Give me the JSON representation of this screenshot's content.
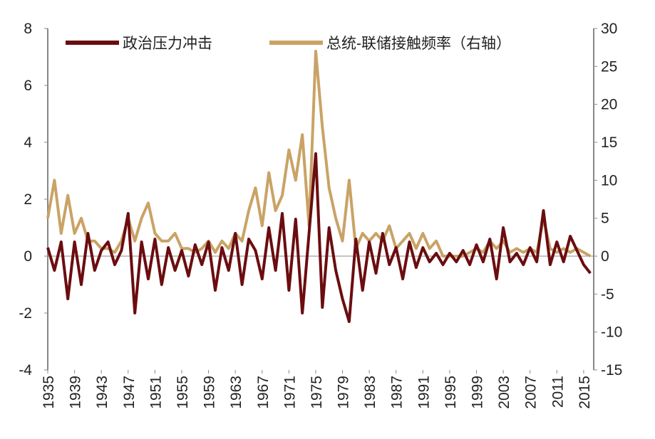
{
  "chart_data": {
    "type": "line",
    "x": [
      1935,
      1936,
      1937,
      1938,
      1939,
      1940,
      1941,
      1942,
      1943,
      1944,
      1945,
      1946,
      1947,
      1948,
      1949,
      1950,
      1951,
      1952,
      1953,
      1954,
      1955,
      1956,
      1957,
      1958,
      1959,
      1960,
      1961,
      1962,
      1963,
      1964,
      1965,
      1966,
      1967,
      1968,
      1969,
      1970,
      1971,
      1972,
      1973,
      1974,
      1975,
      1976,
      1977,
      1978,
      1979,
      1980,
      1981,
      1982,
      1983,
      1984,
      1985,
      1986,
      1987,
      1988,
      1989,
      1990,
      1991,
      1992,
      1993,
      1994,
      1995,
      1996,
      1997,
      1998,
      1999,
      2000,
      2001,
      2002,
      2003,
      2004,
      2005,
      2006,
      2007,
      2008,
      2009,
      2010,
      2011,
      2012,
      2013,
      2014,
      2015,
      2016
    ],
    "series": [
      {
        "name": "政治压力冲击",
        "color": "#6b0d10",
        "values": [
          0.3,
          -0.5,
          0.5,
          -1.5,
          0.5,
          -1.0,
          0.8,
          -0.5,
          0.2,
          0.5,
          -0.3,
          0.2,
          1.5,
          -2.0,
          0.5,
          -0.8,
          0.6,
          -1.0,
          0.3,
          -0.5,
          0.2,
          -0.7,
          0.4,
          -0.3,
          0.5,
          -1.2,
          0.3,
          -0.5,
          0.8,
          -1.0,
          0.6,
          0.2,
          -0.8,
          1.0,
          -0.5,
          1.5,
          -1.2,
          1.3,
          -2.0,
          0.8,
          3.6,
          -1.8,
          1.0,
          -0.5,
          -1.5,
          -2.3,
          0.6,
          -1.2,
          0.5,
          -0.6,
          0.8,
          -0.3,
          0.3,
          -0.8,
          0.5,
          -0.4,
          0.3,
          -0.2,
          0.1,
          -0.3,
          0.1,
          -0.2,
          0.2,
          -0.3,
          0.4,
          -0.2,
          0.6,
          -0.8,
          1.0,
          -0.2,
          0.1,
          -0.3,
          0.3,
          -0.2,
          1.6,
          -0.3,
          0.5,
          -0.2,
          0.7,
          0.2,
          -0.3,
          -0.6
        ]
      },
      {
        "name": "总统-联储接触频率（右轴）",
        "color": "#c9a366",
        "axis": "y2",
        "values": [
          5,
          10,
          3,
          8,
          3,
          5,
          2,
          2,
          1,
          1,
          0.5,
          2,
          5,
          2,
          5,
          7,
          3,
          2,
          2,
          3,
          1,
          1,
          0.5,
          1,
          2,
          0.5,
          2,
          1,
          3,
          2,
          6,
          9,
          4,
          11,
          6,
          8,
          14,
          10,
          16,
          4,
          27,
          17,
          9,
          5,
          2,
          10,
          1,
          3,
          2,
          3,
          2,
          4,
          1,
          2,
          3,
          1,
          3,
          1,
          2,
          0,
          0,
          0,
          0,
          0.5,
          1,
          0.5,
          2,
          1,
          2,
          0.5,
          1,
          0.5,
          1,
          0.5,
          5,
          1,
          0.5,
          1,
          0.5,
          1,
          0.5,
          0
        ]
      }
    ],
    "xlim": [
      1935,
      2016.5
    ],
    "xticks": [
      1935,
      1939,
      1943,
      1947,
      1951,
      1955,
      1959,
      1963,
      1967,
      1971,
      1975,
      1979,
      1983,
      1987,
      1991,
      1995,
      1999,
      2003,
      2007,
      2011,
      2015
    ],
    "ylim": [
      -4,
      8
    ],
    "yticks": [
      -4,
      -2,
      0,
      2,
      4,
      6,
      8
    ],
    "y2lim": [
      -15,
      30
    ],
    "y2ticks": [
      -15,
      -10,
      -5,
      0,
      5,
      10,
      15,
      20,
      25,
      30
    ]
  }
}
